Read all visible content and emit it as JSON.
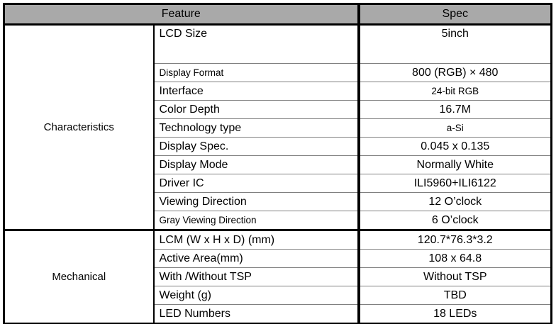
{
  "header": {
    "feature": "Feature",
    "spec": "Spec"
  },
  "sections": [
    {
      "name": "Characteristics",
      "rows": [
        {
          "feature": "LCD Size",
          "spec": "5inch",
          "tall": true
        },
        {
          "feature": "Display Format",
          "spec": "800 (RGB) × 480",
          "small_feature": true
        },
        {
          "feature": "Interface",
          "spec": "24-bit RGB",
          "small_spec": true
        },
        {
          "feature": "Color Depth",
          "spec": "16.7M"
        },
        {
          "feature": "Technology type",
          "spec": "a-Si",
          "small_spec": true
        },
        {
          "feature": "Display Spec.",
          "spec": "0.045 x 0.135"
        },
        {
          "feature": "Display Mode",
          "spec": "Normally White"
        },
        {
          "feature": "Driver IC",
          "spec": "ILI5960+ILI6122"
        },
        {
          "feature": "Viewing Direction",
          "spec": "12 O’clock"
        },
        {
          "feature": "Gray Viewing Direction",
          "spec": "6 O’clock",
          "small_feature": true
        }
      ]
    },
    {
      "name": "Mechanical",
      "rows": [
        {
          "feature": "LCM (W x H x D) (mm)",
          "spec": "120.7*76.3*3.2"
        },
        {
          "feature": "Active Area(mm)",
          "spec": "108 x 64.8"
        },
        {
          "feature": "With /Without TSP",
          "spec": "Without TSP"
        },
        {
          "feature": "Weight (g)",
          "spec": "TBD"
        },
        {
          "feature": "LED Numbers",
          "spec": "18 LEDs"
        }
      ]
    }
  ],
  "colors": {
    "header_bg": "#a9a9a9",
    "border_black": "#000000",
    "row_line": "#808080",
    "text": "#000000"
  }
}
